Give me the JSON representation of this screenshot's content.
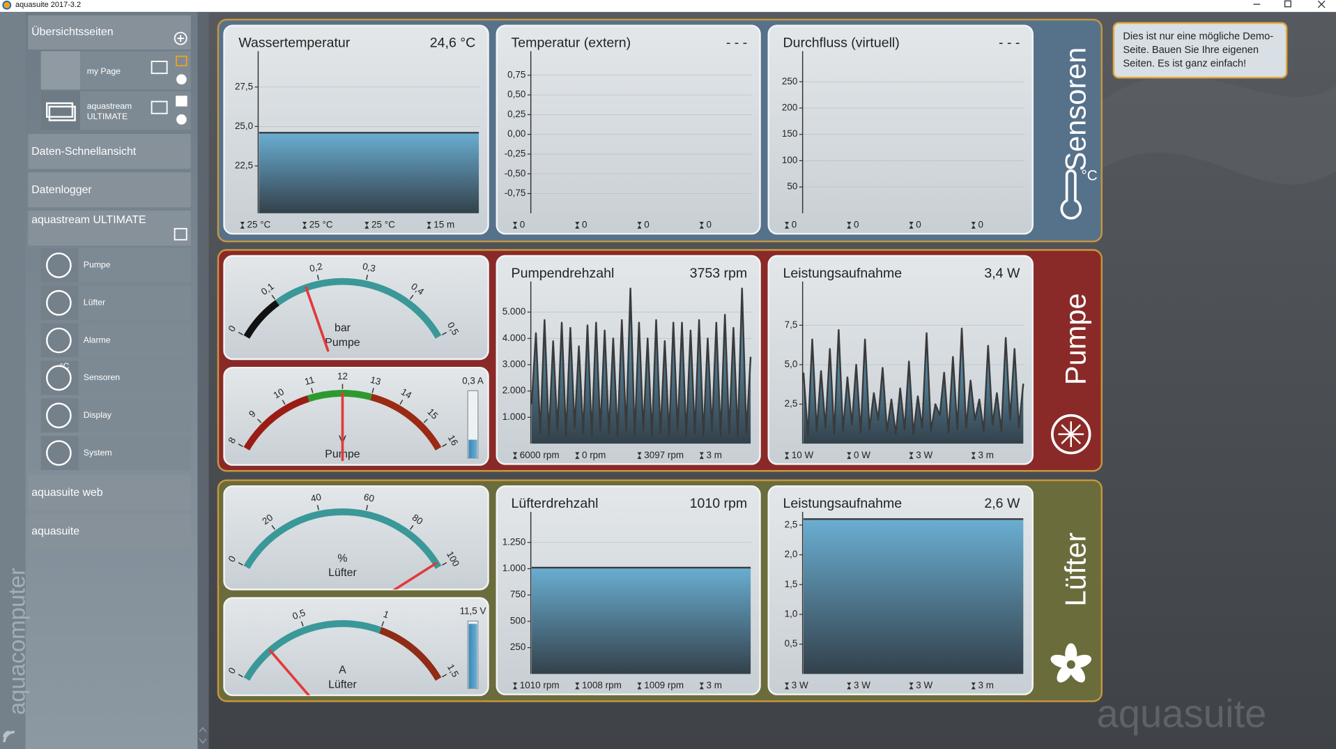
{
  "window": {
    "title": "aquasuite 2017-3.2"
  },
  "sidebar": {
    "brand": "aquacomputer",
    "overview": {
      "title": "Übersichtsseiten",
      "pages": [
        [
          "my Page"
        ],
        [
          "aquastream",
          "ULTIMATE"
        ]
      ]
    },
    "sections": [
      "Daten-Schnellansicht",
      "Datenlogger"
    ],
    "device": {
      "title": "aquastream ULTIMATE",
      "items": [
        "Pumpe",
        "Lüfter",
        "Alarme",
        "Sensoren",
        "Display",
        "System"
      ],
      "sensor_icon_text": "°C"
    },
    "links": [
      "aquasuite web",
      "aquasuite"
    ]
  },
  "note": [
    "Dies ist nur eine mögliche Demo-",
    "Seite. Bauen Sie Ihre eigenen",
    "Seiten. Es ist ganz einfach!"
  ],
  "watermark": "aquasuite",
  "groups": [
    {
      "label": "Sensoren",
      "icon_text": "°C",
      "color": "#56718a",
      "panels": [
        {
          "kind": "chart",
          "title": "Wassertemperatur",
          "value": "24,6 °C",
          "ylim": [
            19.5,
            29.5
          ],
          "yticks": [
            {
              "value": 27.5,
              "label": "27,5"
            },
            {
              "value": 25,
              "label": "25,0"
            },
            {
              "value": 22.5,
              "label": "22,5"
            }
          ],
          "values": [
            24.6,
            24.6,
            24.6,
            24.6,
            24.6,
            24.6,
            24.6,
            24.6,
            24.6,
            24.6,
            24.6,
            24.6
          ],
          "stats": [
            "25 °C",
            "25 °C",
            "25 °C",
            "15 m"
          ]
        },
        {
          "kind": "chart",
          "title": "Temperatur (extern)",
          "value": "- - -",
          "ylim": [
            -1,
            1
          ],
          "yticks": [
            {
              "value": 0.75,
              "label": "0,75"
            },
            {
              "value": 0.5,
              "label": "0,50"
            },
            {
              "value": 0.25,
              "label": "0,25"
            },
            {
              "value": 0,
              "label": "0,00"
            },
            {
              "value": -0.25,
              "label": "-0,25"
            },
            {
              "value": -0.5,
              "label": "-0,50"
            },
            {
              "value": -0.75,
              "label": "-0,75"
            }
          ],
          "values": [],
          "stats": [
            "0",
            "0",
            "0",
            "0"
          ]
        },
        {
          "kind": "chart",
          "title": "Durchfluss (virtuell)",
          "value": "- - -",
          "ylim": [
            0,
            300
          ],
          "yticks": [
            250,
            200,
            150,
            100,
            50
          ],
          "values": [],
          "stats": [
            "0",
            "0",
            "0",
            "0"
          ]
        }
      ]
    },
    {
      "label": "Pumpe",
      "color": "#8a2a28",
      "panels": [
        {
          "kind": "gauge",
          "lim": [
            0,
            0.5
          ],
          "ticks": [
            0,
            {
              "value": 0.1,
              "label": "0,1"
            },
            {
              "value": 0.2,
              "label": "0,2"
            },
            {
              "value": 0.3,
              "label": "0,3"
            },
            {
              "value": 0.4,
              "label": "0,4"
            },
            {
              "value": 0.5,
              "label": "0,5"
            }
          ],
          "bands": [
            {
              "from": 0,
              "to": 0.1,
              "color": "#111111"
            },
            {
              "from": 0.1,
              "to": 0.5,
              "color": "#3a9898"
            }
          ],
          "needle": 0.17,
          "unit": "bar",
          "name": "Pumpe"
        },
        {
          "kind": "gauge",
          "lim": [
            8,
            16
          ],
          "ticks": [
            8,
            9,
            10,
            11,
            12,
            13,
            14,
            15,
            16
          ],
          "bands": [
            {
              "from": 8,
              "to": 10.8,
              "color": "#9a1c14"
            },
            {
              "from": 10.8,
              "to": 13,
              "color": "#2e9a2e"
            },
            {
              "from": 13,
              "to": 16,
              "color": "#9a2a14"
            }
          ],
          "needle": 12,
          "unit": "V",
          "name": "Pumpe",
          "bar": {
            "value": 0.3,
            "label": "0,3 A",
            "lim": [
              0,
              1.1
            ]
          }
        },
        {
          "kind": "chart",
          "title": "Pumpendrehzahl",
          "value": "3753 rpm",
          "ylim": [
            0,
            6000
          ],
          "yticks": [
            {
              "value": 5000,
              "label": "5.000"
            },
            {
              "value": 4000,
              "label": "4.000"
            },
            {
              "value": 3000,
              "label": "3.000"
            },
            {
              "value": 2000,
              "label": "2.000"
            },
            {
              "value": 1000,
              "label": "1.000"
            }
          ],
          "values": [
            1500,
            4200,
            400,
            4700,
            300,
            3900,
            500,
            4600,
            300,
            4400,
            600,
            3700,
            400,
            4500,
            300,
            4600,
            500,
            4300,
            400,
            4000,
            300,
            4700,
            500,
            5900,
            300,
            4600,
            500,
            4000,
            300,
            4700,
            400,
            3900,
            300,
            4600,
            500,
            4600,
            300,
            4300,
            400,
            4700,
            300,
            4000,
            500,
            4600,
            300,
            4900,
            400,
            4400,
            300,
            5900,
            400,
            3300
          ],
          "stats": [
            "6000 rpm",
            "0 rpm",
            "3097 rpm",
            "3 m"
          ]
        },
        {
          "kind": "chart",
          "title": "Leistungsaufnahme",
          "value": "3,4 W",
          "ylim": [
            0,
            10
          ],
          "yticks": [
            {
              "value": 7.5,
              "label": "7,5"
            },
            {
              "value": 5,
              "label": "5,0"
            },
            {
              "value": 2.5,
              "label": "2,5"
            }
          ],
          "values": [
            4.5,
            0.5,
            6.6,
            0.8,
            4.6,
            1.0,
            6.0,
            0.6,
            7.2,
            0.8,
            4.2,
            1.2,
            5.0,
            0.7,
            6.6,
            0.9,
            3.2,
            1.5,
            4.8,
            0.8,
            2.8,
            0.6,
            3.5,
            0.9,
            5.2,
            0.6,
            3.0,
            1.0,
            7.0,
            0.8,
            2.5,
            1.8,
            4.5,
            0.7,
            5.5,
            0.9,
            7.3,
            1.0,
            4.0,
            1.5,
            2.8,
            0.8,
            6.2,
            1.2,
            3.2,
            0.8,
            6.7,
            1.5,
            6.0,
            1.0,
            3.8
          ],
          "stats": [
            "10 W",
            "0 W",
            "3 W",
            "3 m"
          ]
        }
      ]
    },
    {
      "label": "Lüfter",
      "color": "#6b6c3c",
      "panels": [
        {
          "kind": "gauge",
          "lim": [
            0,
            100
          ],
          "ticks": [
            0,
            20,
            40,
            60,
            80,
            100
          ],
          "bands": [
            {
              "from": 0,
              "to": 100,
              "color": "#3a9898"
            }
          ],
          "needle": 98,
          "unit": "%",
          "name": "Lüfter"
        },
        {
          "kind": "gauge",
          "lim": [
            0,
            1.5
          ],
          "ticks": [
            0,
            {
              "value": 0.5,
              "label": "0,5"
            },
            1,
            {
              "value": 1.5,
              "label": "1,5"
            }
          ],
          "bands": [
            {
              "from": 0,
              "to": 1,
              "color": "#3a9898"
            },
            {
              "from": 1,
              "to": 1.5,
              "color": "#8e2c16"
            }
          ],
          "needle": 0.24,
          "unit": "A",
          "name": "Lüfter",
          "bar": {
            "value": 11.5,
            "label": "11,5 V",
            "lim": [
              0,
              12
            ]
          }
        },
        {
          "kind": "chart",
          "title": "Lüfterdrehzahl",
          "value": "1010 rpm",
          "ylim": [
            0,
            1500
          ],
          "yticks": [
            {
              "value": 1250,
              "label": "1.250"
            },
            {
              "value": 1000,
              "label": "1.000"
            },
            750,
            500,
            250
          ],
          "values": [
            1010,
            1010,
            1010,
            1010,
            1010,
            1010,
            1010,
            1010,
            1010,
            1010,
            1010,
            1010
          ],
          "stats": [
            "1010 rpm",
            "1008 rpm",
            "1009 rpm",
            "3 m"
          ]
        },
        {
          "kind": "chart",
          "title": "Leistungsaufnahme",
          "value": "2,6 W",
          "ylim": [
            0,
            2.65
          ],
          "yticks": [
            {
              "value": 2.5,
              "label": "2,5"
            },
            {
              "value": 2,
              "label": "2,0"
            },
            {
              "value": 1.5,
              "label": "1,5"
            },
            {
              "value": 1,
              "label": "1,0"
            },
            {
              "value": 0.5,
              "label": "0,5"
            }
          ],
          "values": [
            2.6,
            2.6,
            2.6,
            2.6,
            2.6,
            2.6,
            2.6,
            2.6,
            2.6,
            2.6,
            2.6,
            2.6
          ],
          "stats": [
            "3 W",
            "3 W",
            "3 W",
            "3 m"
          ]
        }
      ]
    }
  ]
}
